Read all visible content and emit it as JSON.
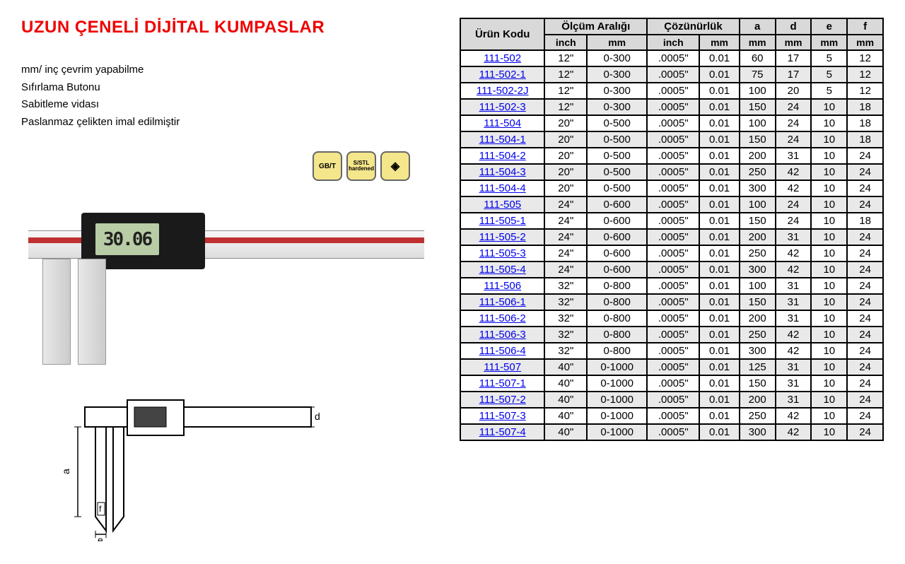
{
  "title": "UZUN ÇENELİ DİJİTAL KUMPASLAR",
  "features": [
    "mm/ inç çevrim yapabilme",
    "Sıfırlama Butonu",
    "Sabitleme vidası",
    "Paslanmaz çelikten imal edilmiştir"
  ],
  "badges": [
    {
      "text": "GB/T",
      "class": "yellow"
    },
    {
      "text": "S/STL hardened",
      "class": "yellow"
    },
    {
      "text": "◈",
      "class": "diamond"
    }
  ],
  "lcd_reading": "30.06",
  "table": {
    "header1": [
      "Ürün Kodu",
      "Ölçüm Aralığı",
      "Çözünürlük",
      "a",
      "d",
      "e",
      "f"
    ],
    "header2": [
      "inch",
      "mm",
      "inch",
      "mm",
      "mm",
      "mm",
      "mm",
      "mm"
    ],
    "rows": [
      {
        "code": "111-502",
        "inch": "12\"",
        "mm": "0-300",
        "res_in": ".0005\"",
        "res_mm": "0.01",
        "a": "60",
        "d": "17",
        "e": "5",
        "f": "12",
        "gray": false
      },
      {
        "code": "111-502-1",
        "inch": "12\"",
        "mm": "0-300",
        "res_in": ".0005\"",
        "res_mm": "0.01",
        "a": "75",
        "d": "17",
        "e": "5",
        "f": "12",
        "gray": true
      },
      {
        "code": "111-502-2J",
        "inch": "12\"",
        "mm": "0-300",
        "res_in": ".0005\"",
        "res_mm": "0.01",
        "a": "100",
        "d": "20",
        "e": "5",
        "f": "12",
        "gray": false
      },
      {
        "code": "111-502-3",
        "inch": "12\"",
        "mm": "0-300",
        "res_in": ".0005\"",
        "res_mm": "0.01",
        "a": "150",
        "d": "24",
        "e": "10",
        "f": "18",
        "gray": true
      },
      {
        "code": "111-504",
        "inch": "20\"",
        "mm": "0-500",
        "res_in": ".0005\"",
        "res_mm": "0.01",
        "a": "100",
        "d": "24",
        "e": "10",
        "f": "18",
        "gray": false
      },
      {
        "code": "111-504-1",
        "inch": "20\"",
        "mm": "0-500",
        "res_in": ".0005\"",
        "res_mm": "0.01",
        "a": "150",
        "d": "24",
        "e": "10",
        "f": "18",
        "gray": true
      },
      {
        "code": "111-504-2",
        "inch": "20\"",
        "mm": "0-500",
        "res_in": ".0005\"",
        "res_mm": "0.01",
        "a": "200",
        "d": "31",
        "e": "10",
        "f": "24",
        "gray": false
      },
      {
        "code": "111-504-3",
        "inch": "20\"",
        "mm": "0-500",
        "res_in": ".0005\"",
        "res_mm": "0.01",
        "a": "250",
        "d": "42",
        "e": "10",
        "f": "24",
        "gray": true
      },
      {
        "code": "111-504-4",
        "inch": "20\"",
        "mm": "0-500",
        "res_in": ".0005\"",
        "res_mm": "0.01",
        "a": "300",
        "d": "42",
        "e": "10",
        "f": "24",
        "gray": false
      },
      {
        "code": "111-505",
        "inch": "24\"",
        "mm": "0-600",
        "res_in": ".0005\"",
        "res_mm": "0.01",
        "a": "100",
        "d": "24",
        "e": "10",
        "f": "24",
        "gray": true
      },
      {
        "code": "111-505-1",
        "inch": "24\"",
        "mm": "0-600",
        "res_in": ".0005\"",
        "res_mm": "0.01",
        "a": "150",
        "d": "24",
        "e": "10",
        "f": "18",
        "gray": false
      },
      {
        "code": "111-505-2",
        "inch": "24\"",
        "mm": "0-600",
        "res_in": ".0005\"",
        "res_mm": "0.01",
        "a": "200",
        "d": "31",
        "e": "10",
        "f": "24",
        "gray": true
      },
      {
        "code": "111-505-3",
        "inch": "24\"",
        "mm": "0-600",
        "res_in": ".0005\"",
        "res_mm": "0.01",
        "a": "250",
        "d": "42",
        "e": "10",
        "f": "24",
        "gray": false
      },
      {
        "code": "111-505-4",
        "inch": "24\"",
        "mm": "0-600",
        "res_in": ".0005\"",
        "res_mm": "0.01",
        "a": "300",
        "d": "42",
        "e": "10",
        "f": "24",
        "gray": true
      },
      {
        "code": "111-506",
        "inch": "32\"",
        "mm": "0-800",
        "res_in": ".0005\"",
        "res_mm": "0.01",
        "a": "100",
        "d": "31",
        "e": "10",
        "f": "24",
        "gray": false
      },
      {
        "code": "111-506-1",
        "inch": "32\"",
        "mm": "0-800",
        "res_in": ".0005\"",
        "res_mm": "0.01",
        "a": "150",
        "d": "31",
        "e": "10",
        "f": "24",
        "gray": true
      },
      {
        "code": "111-506-2",
        "inch": "32\"",
        "mm": "0-800",
        "res_in": ".0005\"",
        "res_mm": "0.01",
        "a": "200",
        "d": "31",
        "e": "10",
        "f": "24",
        "gray": false
      },
      {
        "code": "111-506-3",
        "inch": "32\"",
        "mm": "0-800",
        "res_in": ".0005\"",
        "res_mm": "0.01",
        "a": "250",
        "d": "42",
        "e": "10",
        "f": "24",
        "gray": true
      },
      {
        "code": "111-506-4",
        "inch": "32\"",
        "mm": "0-800",
        "res_in": ".0005\"",
        "res_mm": "0.01",
        "a": "300",
        "d": "42",
        "e": "10",
        "f": "24",
        "gray": false
      },
      {
        "code": "111-507",
        "inch": "40\"",
        "mm": "0-1000",
        "res_in": ".0005\"",
        "res_mm": "0.01",
        "a": "125",
        "d": "31",
        "e": "10",
        "f": "24",
        "gray": true
      },
      {
        "code": "111-507-1",
        "inch": "40\"",
        "mm": "0-1000",
        "res_in": ".0005\"",
        "res_mm": "0.01",
        "a": "150",
        "d": "31",
        "e": "10",
        "f": "24",
        "gray": false
      },
      {
        "code": "111-507-2",
        "inch": "40\"",
        "mm": "0-1000",
        "res_in": ".0005\"",
        "res_mm": "0.01",
        "a": "200",
        "d": "31",
        "e": "10",
        "f": "24",
        "gray": true
      },
      {
        "code": "111-507-3",
        "inch": "40\"",
        "mm": "0-1000",
        "res_in": ".0005\"",
        "res_mm": "0.01",
        "a": "250",
        "d": "42",
        "e": "10",
        "f": "24",
        "gray": false
      },
      {
        "code": "111-507-4",
        "inch": "40\"",
        "mm": "0-1000",
        "res_in": ".0005\"",
        "res_mm": "0.01",
        "a": "300",
        "d": "42",
        "e": "10",
        "f": "24",
        "gray": true
      }
    ]
  }
}
